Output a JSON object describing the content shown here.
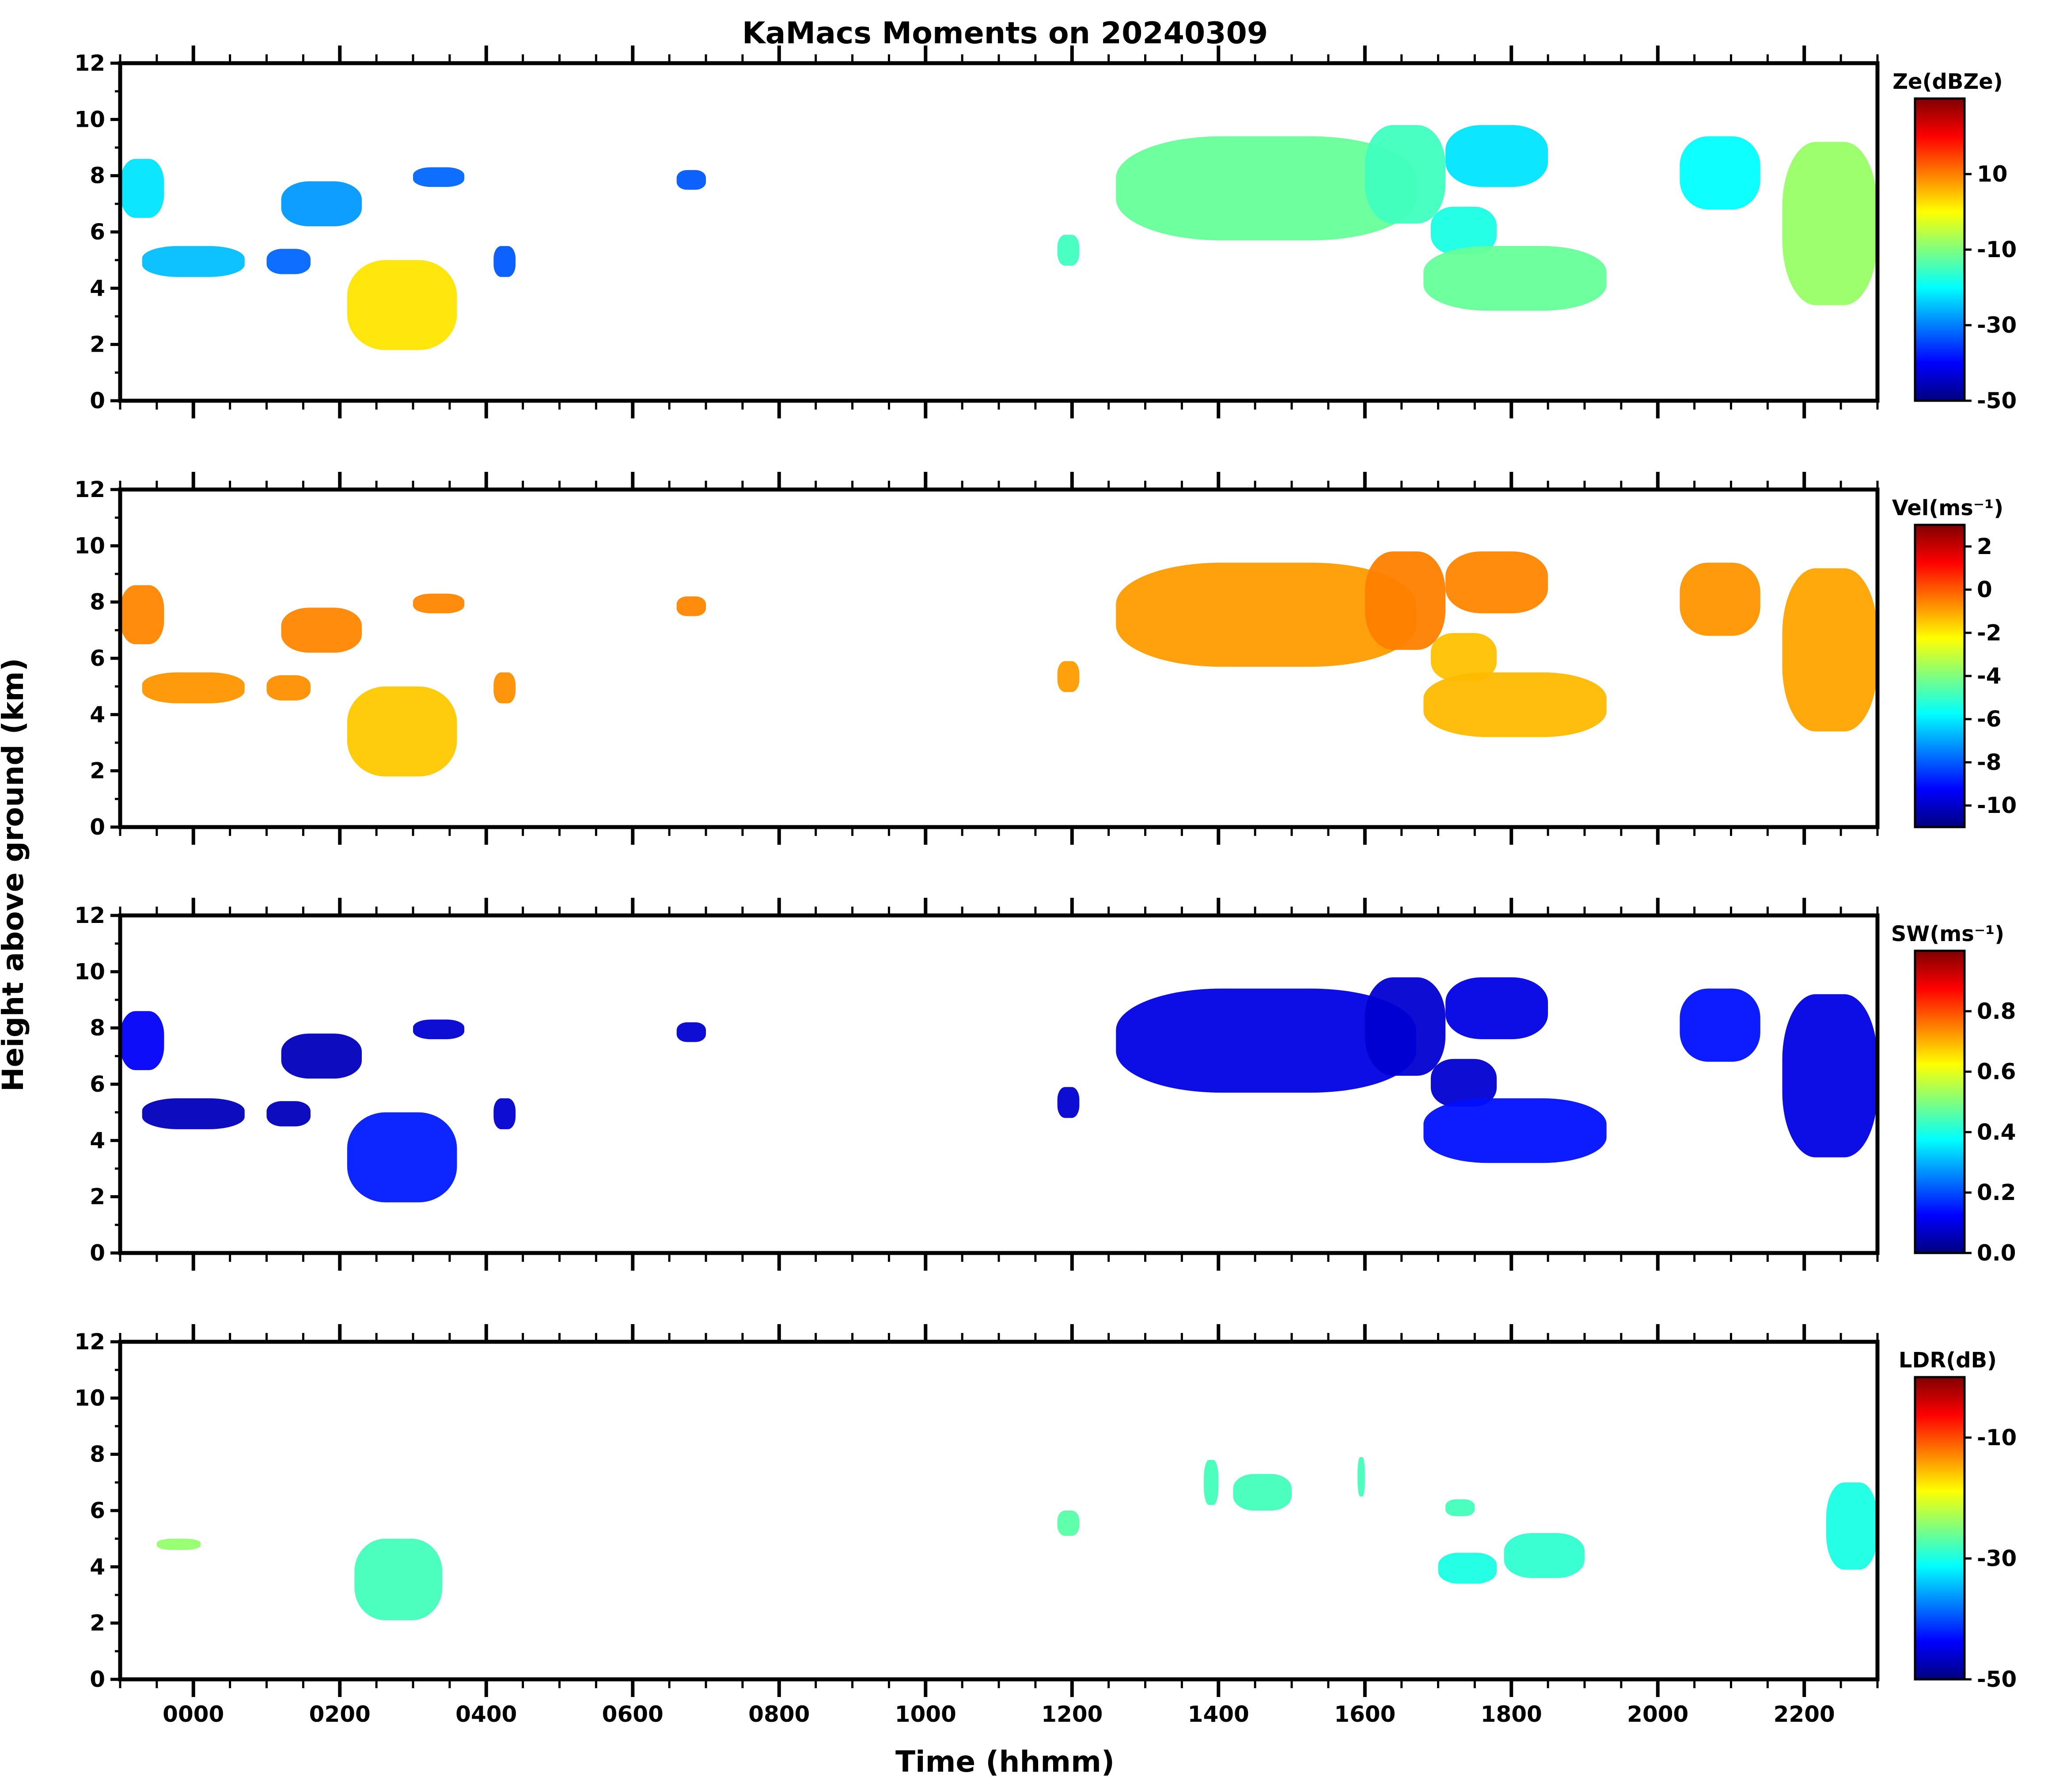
{
  "figure_title": "KaMacs Moments on 20240309",
  "ylabel": "Height above ground (km)",
  "xlabel": "Time (hhmm)",
  "colors": {
    "jet": [
      "#00007f",
      "#0000ff",
      "#007fff",
      "#00ffff",
      "#7fff7f",
      "#ffff00",
      "#ff7f00",
      "#ff0000",
      "#7f0000"
    ]
  },
  "chart_data": [
    {
      "type": "heatmap",
      "name": "reflectivity",
      "colorbar_label": "Ze(dBZe)",
      "colorbar_ticks": [
        "10",
        "-10",
        "-30",
        "-50"
      ],
      "colorbar_tick_values": [
        10,
        -10,
        -30,
        -50
      ],
      "clim": [
        -50,
        30
      ],
      "ylim": [
        0,
        12
      ],
      "yticks": [
        "0",
        "2",
        "4",
        "6",
        "8",
        "10",
        "12"
      ],
      "xlim": [
        -1.0,
        23.0
      ],
      "xticks": [
        "0000",
        "0200",
        "0400",
        "0600",
        "0800",
        "1000",
        "1200",
        "1400",
        "1600",
        "1800",
        "2000",
        "2200"
      ],
      "regions": [
        {
          "t0": -1.0,
          "t1": -0.4,
          "bottom": 6.5,
          "top": 8.6,
          "value": -22
        },
        {
          "t0": -0.7,
          "t1": 0.7,
          "bottom": 4.4,
          "top": 5.5,
          "value": -25
        },
        {
          "t0": 1.2,
          "t1": 2.3,
          "bottom": 6.2,
          "top": 7.8,
          "value": -28
        },
        {
          "t0": 1.0,
          "t1": 1.6,
          "bottom": 4.5,
          "top": 5.4,
          "value": -32
        },
        {
          "t0": 2.1,
          "t1": 3.6,
          "bottom": 1.8,
          "top": 5.0,
          "value": 2
        },
        {
          "t0": 3.0,
          "t1": 3.7,
          "bottom": 7.6,
          "top": 8.3,
          "value": -32
        },
        {
          "t0": 4.1,
          "t1": 4.4,
          "bottom": 4.4,
          "top": 5.5,
          "value": -33
        },
        {
          "t0": 6.6,
          "t1": 7.0,
          "bottom": 7.5,
          "top": 8.2,
          "value": -33
        },
        {
          "t0": 11.8,
          "t1": 12.1,
          "bottom": 4.8,
          "top": 5.9,
          "value": -15
        },
        {
          "t0": 12.6,
          "t1": 16.7,
          "bottom": 5.7,
          "top": 9.4,
          "value": -12
        },
        {
          "t0": 16.0,
          "t1": 17.1,
          "bottom": 6.3,
          "top": 9.8,
          "value": -15
        },
        {
          "t0": 17.1,
          "t1": 18.5,
          "bottom": 7.6,
          "top": 9.8,
          "value": -22
        },
        {
          "t0": 16.9,
          "t1": 17.8,
          "bottom": 5.2,
          "top": 6.9,
          "value": -18
        },
        {
          "t0": 16.8,
          "t1": 19.3,
          "bottom": 3.2,
          "top": 5.5,
          "value": -12
        },
        {
          "t0": 20.3,
          "t1": 21.4,
          "bottom": 6.8,
          "top": 9.4,
          "value": -20
        },
        {
          "t0": 21.7,
          "t1": 23.0,
          "bottom": 3.4,
          "top": 9.2,
          "value": -8
        }
      ]
    },
    {
      "type": "heatmap",
      "name": "velocity",
      "colorbar_label": "Vel(ms⁻¹)",
      "colorbar_ticks": [
        "2",
        "0",
        "-2",
        "-4",
        "-6",
        "-8",
        "-10"
      ],
      "colorbar_tick_values": [
        2,
        0,
        -2,
        -4,
        -6,
        -8,
        -10
      ],
      "clim": [
        -11,
        3
      ],
      "ylim": [
        0,
        12
      ],
      "yticks": [
        "0",
        "2",
        "4",
        "6",
        "8",
        "10",
        "12"
      ],
      "xlim": [
        -1.0,
        23.0
      ],
      "xticks": [
        "0000",
        "0200",
        "0400",
        "0600",
        "0800",
        "1000",
        "1200",
        "1400",
        "1600",
        "1800",
        "2000",
        "2200"
      ],
      "regions": [
        {
          "t0": -1.0,
          "t1": -0.4,
          "bottom": 6.5,
          "top": 8.6,
          "value": -0.6
        },
        {
          "t0": -0.7,
          "t1": 0.7,
          "bottom": 4.4,
          "top": 5.5,
          "value": -0.8
        },
        {
          "t0": 1.2,
          "t1": 2.3,
          "bottom": 6.2,
          "top": 7.8,
          "value": -0.6
        },
        {
          "t0": 1.0,
          "t1": 1.6,
          "bottom": 4.5,
          "top": 5.4,
          "value": -0.7
        },
        {
          "t0": 2.1,
          "t1": 3.6,
          "bottom": 1.8,
          "top": 5.0,
          "value": -1.5
        },
        {
          "t0": 3.0,
          "t1": 3.7,
          "bottom": 7.6,
          "top": 8.3,
          "value": -0.6
        },
        {
          "t0": 4.1,
          "t1": 4.4,
          "bottom": 4.4,
          "top": 5.5,
          "value": -0.7
        },
        {
          "t0": 6.6,
          "t1": 7.0,
          "bottom": 7.5,
          "top": 8.2,
          "value": -0.6
        },
        {
          "t0": 11.8,
          "t1": 12.1,
          "bottom": 4.8,
          "top": 5.9,
          "value": -0.9
        },
        {
          "t0": 12.6,
          "t1": 16.7,
          "bottom": 5.7,
          "top": 9.4,
          "value": -0.9
        },
        {
          "t0": 16.0,
          "t1": 17.1,
          "bottom": 6.3,
          "top": 9.8,
          "value": -0.5
        },
        {
          "t0": 17.1,
          "t1": 18.5,
          "bottom": 7.6,
          "top": 9.8,
          "value": -0.6
        },
        {
          "t0": 16.9,
          "t1": 17.8,
          "bottom": 5.2,
          "top": 6.9,
          "value": -1.4
        },
        {
          "t0": 16.8,
          "t1": 19.3,
          "bottom": 3.2,
          "top": 5.5,
          "value": -1.3
        },
        {
          "t0": 20.3,
          "t1": 21.4,
          "bottom": 6.8,
          "top": 9.4,
          "value": -0.8
        },
        {
          "t0": 21.7,
          "t1": 23.0,
          "bottom": 3.4,
          "top": 9.2,
          "value": -1.0
        }
      ]
    },
    {
      "type": "heatmap",
      "name": "spectrum_width",
      "colorbar_label": "SW(ms⁻¹)",
      "colorbar_ticks": [
        "0.8",
        "0.6",
        "0.4",
        "0.2",
        "0.0"
      ],
      "colorbar_tick_values": [
        0.8,
        0.6,
        0.4,
        0.2,
        0.0
      ],
      "clim": [
        0.0,
        1.0
      ],
      "ylim": [
        0,
        12
      ],
      "yticks": [
        "0",
        "2",
        "4",
        "6",
        "8",
        "10",
        "12"
      ],
      "xlim": [
        -1.0,
        23.0
      ],
      "xticks": [
        "0000",
        "0200",
        "0400",
        "0600",
        "0800",
        "1000",
        "1200",
        "1400",
        "1600",
        "1800",
        "2000",
        "2200"
      ],
      "regions": [
        {
          "t0": -1.0,
          "t1": -0.4,
          "bottom": 6.5,
          "top": 8.6,
          "value": 0.12
        },
        {
          "t0": -0.7,
          "t1": 0.7,
          "bottom": 4.4,
          "top": 5.5,
          "value": 0.06
        },
        {
          "t0": 1.2,
          "t1": 2.3,
          "bottom": 6.2,
          "top": 7.8,
          "value": 0.06
        },
        {
          "t0": 1.0,
          "t1": 1.6,
          "bottom": 4.5,
          "top": 5.4,
          "value": 0.06
        },
        {
          "t0": 2.1,
          "t1": 3.6,
          "bottom": 1.8,
          "top": 5.0,
          "value": 0.15
        },
        {
          "t0": 3.0,
          "t1": 3.7,
          "bottom": 7.6,
          "top": 8.3,
          "value": 0.08
        },
        {
          "t0": 4.1,
          "t1": 4.4,
          "bottom": 4.4,
          "top": 5.5,
          "value": 0.08
        },
        {
          "t0": 6.6,
          "t1": 7.0,
          "bottom": 7.5,
          "top": 8.2,
          "value": 0.08
        },
        {
          "t0": 11.8,
          "t1": 12.1,
          "bottom": 4.8,
          "top": 5.9,
          "value": 0.08
        },
        {
          "t0": 12.6,
          "t1": 16.7,
          "bottom": 5.7,
          "top": 9.4,
          "value": 0.1
        },
        {
          "t0": 16.0,
          "t1": 17.1,
          "bottom": 6.3,
          "top": 9.8,
          "value": 0.08
        },
        {
          "t0": 17.1,
          "t1": 18.5,
          "bottom": 7.6,
          "top": 9.8,
          "value": 0.1
        },
        {
          "t0": 16.9,
          "t1": 17.8,
          "bottom": 5.2,
          "top": 6.9,
          "value": 0.08
        },
        {
          "t0": 16.8,
          "t1": 19.3,
          "bottom": 3.2,
          "top": 5.5,
          "value": 0.14
        },
        {
          "t0": 20.3,
          "t1": 21.4,
          "bottom": 6.8,
          "top": 9.4,
          "value": 0.14
        },
        {
          "t0": 21.7,
          "t1": 23.0,
          "bottom": 3.4,
          "top": 9.2,
          "value": 0.1
        }
      ]
    },
    {
      "type": "heatmap",
      "name": "linear_depolarization_ratio",
      "colorbar_label": "LDR(dB)",
      "colorbar_ticks": [
        "-10",
        "-30",
        "-50"
      ],
      "colorbar_tick_values": [
        -10,
        -30,
        -50
      ],
      "clim": [
        -50,
        0
      ],
      "ylim": [
        0,
        12
      ],
      "yticks": [
        "0",
        "2",
        "4",
        "6",
        "8",
        "10",
        "12"
      ],
      "xlim": [
        -1.0,
        23.0
      ],
      "xticks": [
        "0000",
        "0200",
        "0400",
        "0600",
        "0800",
        "1000",
        "1200",
        "1400",
        "1600",
        "1800",
        "2000",
        "2200"
      ],
      "regions": [
        {
          "t0": -0.5,
          "t1": 0.1,
          "bottom": 4.6,
          "top": 5.0,
          "value": -24
        },
        {
          "t0": 2.2,
          "t1": 3.4,
          "bottom": 2.1,
          "top": 5.0,
          "value": -28
        },
        {
          "t0": 11.8,
          "t1": 12.1,
          "bottom": 5.1,
          "top": 6.0,
          "value": -27
        },
        {
          "t0": 13.8,
          "t1": 14.0,
          "bottom": 6.2,
          "top": 7.8,
          "value": -28
        },
        {
          "t0": 14.2,
          "t1": 15.0,
          "bottom": 6.0,
          "top": 7.3,
          "value": -28
        },
        {
          "t0": 15.9,
          "t1": 16.0,
          "bottom": 6.5,
          "top": 7.9,
          "value": -28
        },
        {
          "t0": 17.1,
          "t1": 17.5,
          "bottom": 5.8,
          "top": 6.4,
          "value": -28
        },
        {
          "t0": 17.0,
          "t1": 17.8,
          "bottom": 3.4,
          "top": 4.5,
          "value": -30
        },
        {
          "t0": 17.9,
          "t1": 19.0,
          "bottom": 3.6,
          "top": 5.2,
          "value": -29
        },
        {
          "t0": 22.3,
          "t1": 23.0,
          "bottom": 3.9,
          "top": 7.0,
          "value": -30
        }
      ]
    }
  ]
}
